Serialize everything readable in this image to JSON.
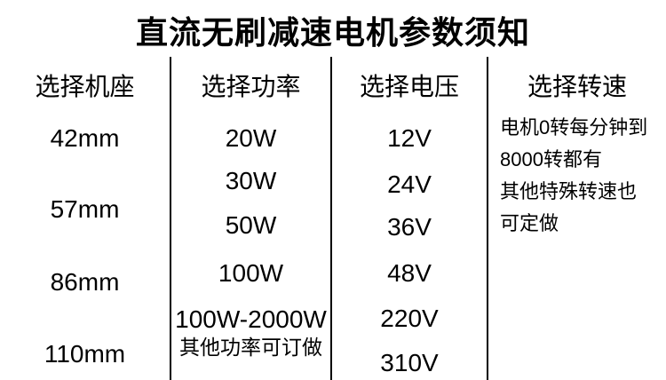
{
  "title": "直流无刷减速电机参数须知",
  "colors": {
    "background": "#ffffff",
    "text": "#000000",
    "divider": "#000000"
  },
  "columns": [
    {
      "header": "选择机座",
      "items": [
        "42mm",
        "57mm",
        "86mm",
        "110mm"
      ]
    },
    {
      "header": "选择功率",
      "items": [
        "20W",
        "30W",
        "50W",
        "100W",
        "100W-2000W",
        "其他功率可订做"
      ]
    },
    {
      "header": "选择电压",
      "items": [
        "12V",
        "24V",
        "36V",
        "48V",
        "220V",
        "310V"
      ]
    },
    {
      "header": "选择转速",
      "items": [
        "电机0转每分钟到",
        "8000转都有",
        "其他特殊转速也",
        "可定做"
      ]
    }
  ]
}
